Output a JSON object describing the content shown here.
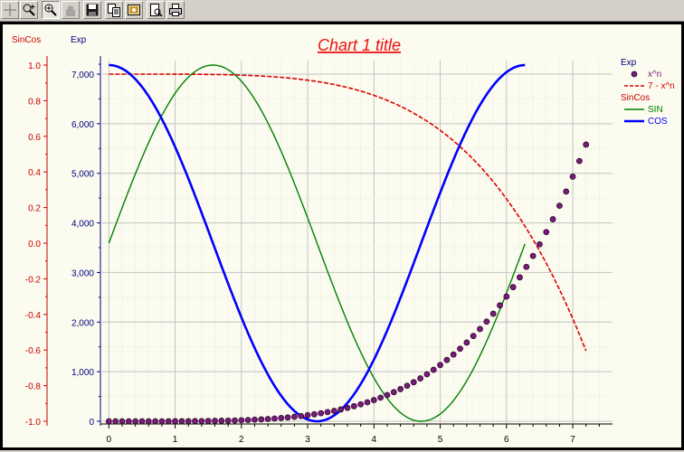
{
  "toolbar": {
    "buttons": [
      {
        "name": "crosshair-icon"
      },
      {
        "name": "zoom-box-icon"
      },
      {
        "name": "zoom-icon"
      },
      {
        "name": "pan-hand-icon"
      },
      {
        "name": "save-icon"
      },
      {
        "name": "copy-icon"
      },
      {
        "name": "properties-icon"
      },
      {
        "name": "print-preview-icon"
      },
      {
        "name": "print-icon"
      }
    ]
  },
  "chart_data": {
    "type": "line",
    "title": "Chart 1 title",
    "colors": {
      "sincos_axis": "#cc0000",
      "exp_axis": "#000080",
      "title": "#ee1111",
      "x_pow_n": "#7a1a7a",
      "seven_minus": "#dd0000",
      "sin": "#008000",
      "cos": "#0000ff",
      "grid": "#c8c8c8"
    },
    "axes": {
      "x": {
        "range": [
          -0.1,
          7.6
        ],
        "ticks": [
          "0",
          "1",
          "2",
          "3",
          "4",
          "5",
          "6",
          "7"
        ],
        "tick_values": [
          0,
          1,
          2,
          3,
          4,
          5,
          6,
          7
        ],
        "minor_step": 0.2
      },
      "y_sincos": {
        "label": "SinCos",
        "range": [
          -1.0,
          1.0
        ],
        "ticks": [
          "1.0",
          "0.8",
          "0.6",
          "0.4",
          "0.2",
          "0.0",
          "-0.2",
          "-0.4",
          "-0.6",
          "-0.8",
          "-1.0"
        ],
        "tick_values": [
          1.0,
          0.8,
          0.6,
          0.4,
          0.2,
          0.0,
          -0.2,
          -0.4,
          -0.6,
          -0.8,
          -1.0
        ]
      },
      "y_exp": {
        "label": "Exp",
        "range": [
          0,
          7000
        ],
        "ticks": [
          "7,000",
          "6,000",
          "5,000",
          "4,000",
          "3,000",
          "2,000",
          "1,000",
          "0"
        ],
        "tick_values": [
          7000,
          6000,
          5000,
          4000,
          3000,
          2000,
          1000,
          0
        ]
      }
    },
    "grid": true,
    "legend": {
      "placement": "top-right",
      "groups": [
        {
          "title": "Exp",
          "items": [
            {
              "label": "x^n",
              "style": "marker"
            },
            {
              "label": "7 - x^n",
              "style": "dashed"
            }
          ]
        },
        {
          "title": "SinCos",
          "items": [
            {
              "label": "SIN",
              "style": "line"
            },
            {
              "label": "COS",
              "style": "line"
            }
          ]
        }
      ]
    },
    "series": [
      {
        "name": "x^n",
        "axis": "y_exp",
        "function": "y = x^4.37",
        "x_range": [
          0,
          7.2
        ],
        "x_step": 0.1,
        "style": "marker"
      },
      {
        "name": "7 - x^n",
        "axis": "y_exp",
        "function": "y = 7000 - x^4.37",
        "x_range": [
          0,
          7.2
        ],
        "x_step": 0.1,
        "style": "dashed"
      },
      {
        "name": "SIN",
        "axis": "y_sincos",
        "function": "y = sin(x)",
        "x_range": [
          0,
          6.28
        ],
        "x_step": 0.05,
        "style": "line"
      },
      {
        "name": "COS",
        "axis": "y_sincos",
        "function": "y = cos(x)",
        "x_range": [
          0,
          6.28
        ],
        "x_step": 0.05,
        "style": "line"
      }
    ]
  }
}
